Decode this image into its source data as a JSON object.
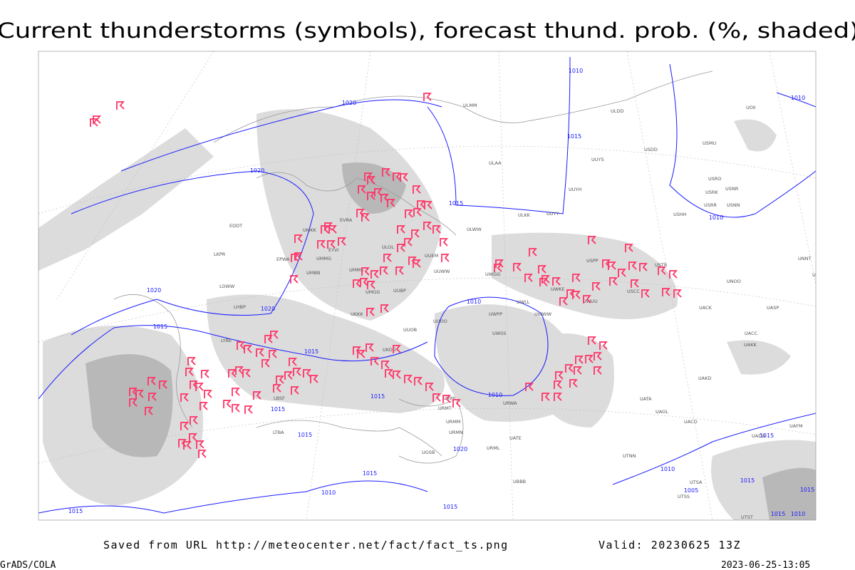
{
  "title": "Current thunderstorms (symbols), forecast thund. prob. (%, shaded)",
  "footer": {
    "source": "Saved from URL http://meteocenter.net/fact/fact_ts.png",
    "valid": "Valid: 20230625 13Z",
    "software": "GrADS/COLA",
    "timestamp": "2023-06-25-13:05"
  },
  "isobar_labels": [
    "1010",
    "1020",
    "1015",
    "1020",
    "1015",
    "1010",
    "1020",
    "1020",
    "1015",
    "1015",
    "1010",
    "1010",
    "1015",
    "1015",
    "1015",
    "1020",
    "1015",
    "1010",
    "1015",
    "1015",
    "1010",
    "1010",
    "1015",
    "1015",
    "1015",
    "1015",
    "1010",
    "1005"
  ],
  "stations": [
    "ULMM",
    "ULDD",
    "UOII",
    "ULAA",
    "UUYS",
    "USDD",
    "USMU",
    "UUYH",
    "USRO",
    "USRK",
    "USNR",
    "USRR",
    "USNN",
    "USHH",
    "ULKK",
    "UUYY",
    "ULWW",
    "UUEM",
    "UUWW",
    "UWGG",
    "UWKE",
    "USPP",
    "USTR",
    "USCC",
    "UWUU",
    "UNOO",
    "UNBB",
    "UNNT",
    "UACK",
    "UASP",
    "UACC",
    "UAKK",
    "UAKD",
    "UATA",
    "UAOL",
    "UACO",
    "UAFM",
    "UADD",
    "UTNN",
    "UTSA",
    "UTSS",
    "UTST",
    "EPWA",
    "EYVI",
    "UMMG",
    "UMBB",
    "EVRA",
    "UMKK",
    "ULOL",
    "UMMS",
    "UMGG",
    "UUBP",
    "UKKK",
    "UKOO",
    "UUOB",
    "UUOO",
    "UWPP",
    "UWWW",
    "UWLL",
    "UWSS",
    "URWI",
    "URWA",
    "URMT",
    "URMM",
    "URMN",
    "URML",
    "UATE",
    "UBBB",
    "UGSB",
    "LTBA",
    "LBSF",
    "LYBE",
    "LHBP",
    "LKPR",
    "LOWW",
    "EDDT"
  ]
}
